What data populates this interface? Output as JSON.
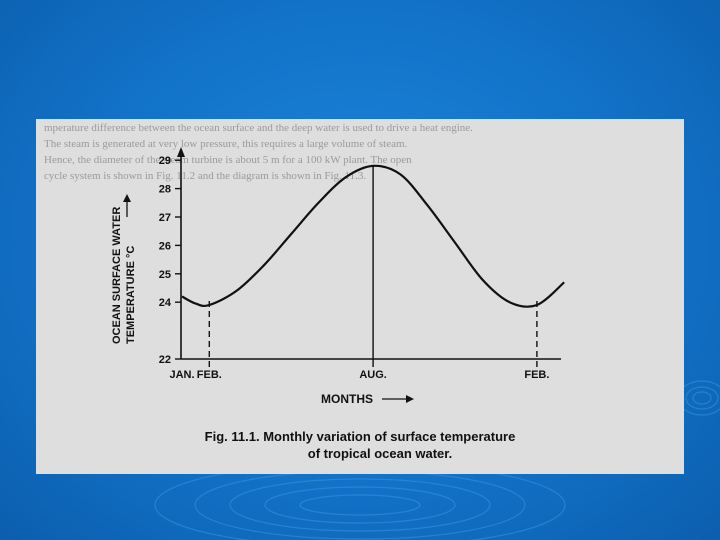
{
  "chart_data": {
    "type": "line",
    "caption_line1": "Fig. 11.1. Monthly variation of surface temperature",
    "caption_line2": "of tropical ocean water.",
    "ylabel_line1": "OCEAN SURFACE WATER",
    "ylabel_line2": "TEMPERATURE °C",
    "xlabel": "MONTHS",
    "yticks": [
      22,
      24,
      25,
      26,
      27,
      28,
      29
    ],
    "ylim": [
      22,
      29.5
    ],
    "xtick_labels": [
      "JAN.",
      "FEB.",
      "AUG.",
      "FEB."
    ],
    "xtick_positions": [
      0,
      1,
      7,
      13
    ],
    "x": [
      0,
      0.5,
      1,
      2,
      3,
      4,
      5,
      6,
      7,
      8,
      9,
      10,
      11,
      12,
      13,
      14
    ],
    "y": [
      24.2,
      23.95,
      23.9,
      24.4,
      25.3,
      26.4,
      27.5,
      28.4,
      28.8,
      28.5,
      27.4,
      26.1,
      24.8,
      24.0,
      23.9,
      24.7
    ],
    "marked_points": [
      {
        "label": "FEB.",
        "x": 1,
        "style": "dashed"
      },
      {
        "label": "AUG.",
        "x": 7,
        "style": "solid"
      },
      {
        "label": "FEB.",
        "x": 13,
        "style": "dashed"
      }
    ],
    "grid": false,
    "legend": "none"
  },
  "colors": {
    "slide_background": "#1273c8",
    "paper": "#dedede",
    "ink": "#111111",
    "bleed_through": "#9a9a9a"
  },
  "bleed_text": {
    "line1": "mperature difference between the ocean surface and the deep water is used to drive a heat engine.",
    "line2": "The steam is generated at very low pressure, this requires a large volume of steam.",
    "line3": "Hence, the diameter of the steam turbine is about 5 m for a 100 kW plant. The open",
    "line4": "cycle system is shown in Fig. 11.2 and the diagram is shown in Fig. 11.3."
  }
}
